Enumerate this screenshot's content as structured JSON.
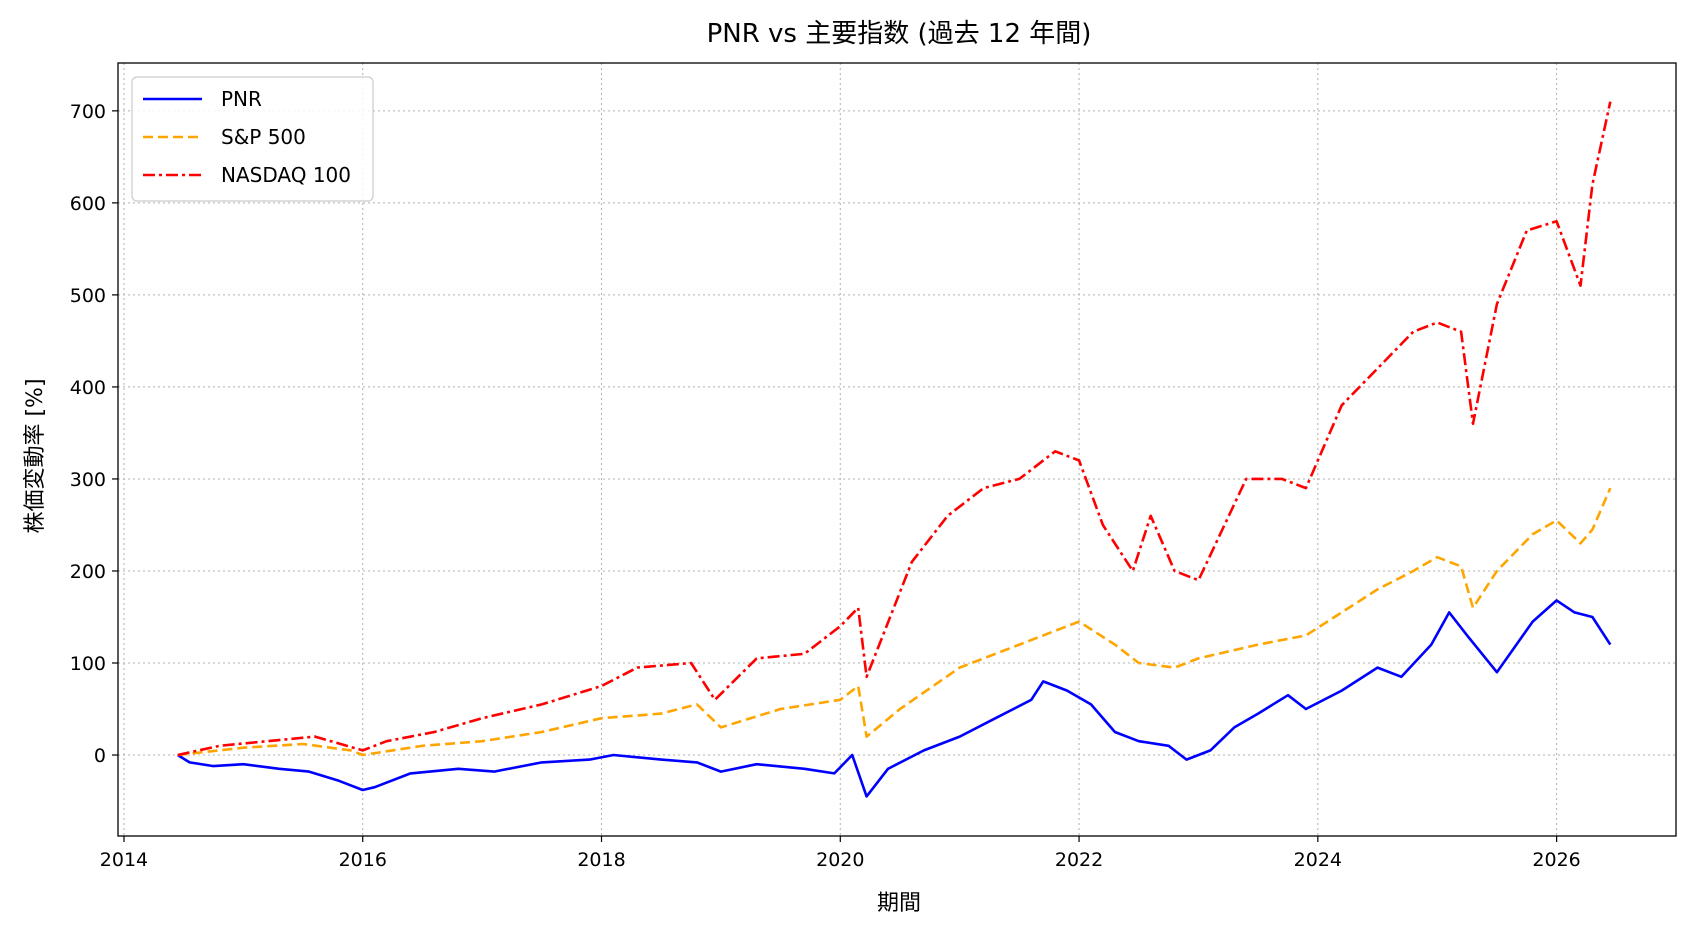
{
  "chart_data": {
    "type": "line",
    "title": "PNR vs 主要指数 (過去 12 年間)",
    "xlabel": "期間",
    "ylabel": "株価変動率 [%]",
    "xlim": [
      2013.95,
      2027.0
    ],
    "ylim": [
      -88,
      752
    ],
    "x_ticks": [
      2014,
      2016,
      2018,
      2020,
      2022,
      2024,
      2026
    ],
    "y_ticks": [
      0,
      100,
      200,
      300,
      400,
      500,
      600,
      700
    ],
    "grid": true,
    "legend_position": "top-left",
    "series": [
      {
        "name": "PNR",
        "color": "#0000ff",
        "dash": "solid",
        "x": [
          2014.45,
          2014.55,
          2014.75,
          2015.0,
          2015.3,
          2015.55,
          2015.8,
          2016.0,
          2016.1,
          2016.4,
          2016.8,
          2017.1,
          2017.5,
          2017.9,
          2018.1,
          2018.5,
          2018.8,
          2019.0,
          2019.3,
          2019.7,
          2019.95,
          2020.1,
          2020.22,
          2020.4,
          2020.7,
          2021.0,
          2021.3,
          2021.6,
          2021.7,
          2021.9,
          2022.1,
          2022.3,
          2022.5,
          2022.75,
          2022.9,
          2023.1,
          2023.3,
          2023.5,
          2023.75,
          2023.9,
          2024.2,
          2024.5,
          2024.7,
          2024.95,
          2025.1,
          2025.25,
          2025.5,
          2025.8,
          2026.0,
          2026.15,
          2026.3,
          2026.45
        ],
        "y": [
          0,
          -8,
          -12,
          -10,
          -15,
          -18,
          -28,
          -38,
          -35,
          -20,
          -15,
          -18,
          -8,
          -5,
          0,
          -5,
          -8,
          -18,
          -10,
          -15,
          -20,
          0,
          -45,
          -15,
          5,
          20,
          40,
          60,
          80,
          70,
          55,
          25,
          15,
          10,
          -5,
          5,
          30,
          45,
          65,
          50,
          70,
          95,
          85,
          120,
          155,
          130,
          90,
          145,
          168,
          155,
          150,
          120
        ]
      },
      {
        "name": "S&P 500",
        "color": "#ffa500",
        "dash": "10,5",
        "x": [
          2014.45,
          2015.0,
          2015.5,
          2015.9,
          2016.0,
          2016.5,
          2017.0,
          2017.5,
          2018.0,
          2018.5,
          2018.8,
          2019.0,
          2019.5,
          2020.0,
          2020.15,
          2020.22,
          2020.5,
          2021.0,
          2021.5,
          2022.0,
          2022.3,
          2022.5,
          2022.8,
          2023.0,
          2023.5,
          2023.9,
          2024.2,
          2024.5,
          2024.8,
          2025.0,
          2025.2,
          2025.3,
          2025.5,
          2025.8,
          2026.0,
          2026.2,
          2026.3,
          2026.45
        ],
        "y": [
          0,
          8,
          12,
          5,
          0,
          10,
          15,
          25,
          40,
          45,
          55,
          30,
          50,
          60,
          75,
          20,
          50,
          95,
          120,
          145,
          120,
          100,
          95,
          105,
          120,
          130,
          155,
          180,
          200,
          215,
          205,
          160,
          200,
          240,
          255,
          230,
          245,
          290
        ]
      },
      {
        "name": "NASDAQ 100",
        "color": "#ff0000",
        "dash": "12,4,3,4",
        "x": [
          2014.45,
          2014.8,
          2015.2,
          2015.6,
          2016.0,
          2016.2,
          2016.6,
          2017.0,
          2017.5,
          2018.0,
          2018.3,
          2018.75,
          2018.95,
          2019.3,
          2019.7,
          2020.0,
          2020.15,
          2020.22,
          2020.6,
          2020.9,
          2021.2,
          2021.5,
          2021.8,
          2022.0,
          2022.2,
          2022.45,
          2022.6,
          2022.8,
          2023.0,
          2023.4,
          2023.7,
          2023.9,
          2024.2,
          2024.5,
          2024.8,
          2025.0,
          2025.2,
          2025.3,
          2025.5,
          2025.75,
          2026.0,
          2026.2,
          2026.3,
          2026.45
        ],
        "y": [
          0,
          10,
          15,
          20,
          5,
          15,
          25,
          40,
          55,
          75,
          95,
          100,
          60,
          105,
          110,
          140,
          160,
          85,
          210,
          260,
          290,
          300,
          330,
          320,
          250,
          200,
          260,
          200,
          190,
          300,
          300,
          290,
          380,
          420,
          460,
          470,
          460,
          360,
          490,
          570,
          580,
          510,
          620,
          710
        ]
      }
    ]
  }
}
